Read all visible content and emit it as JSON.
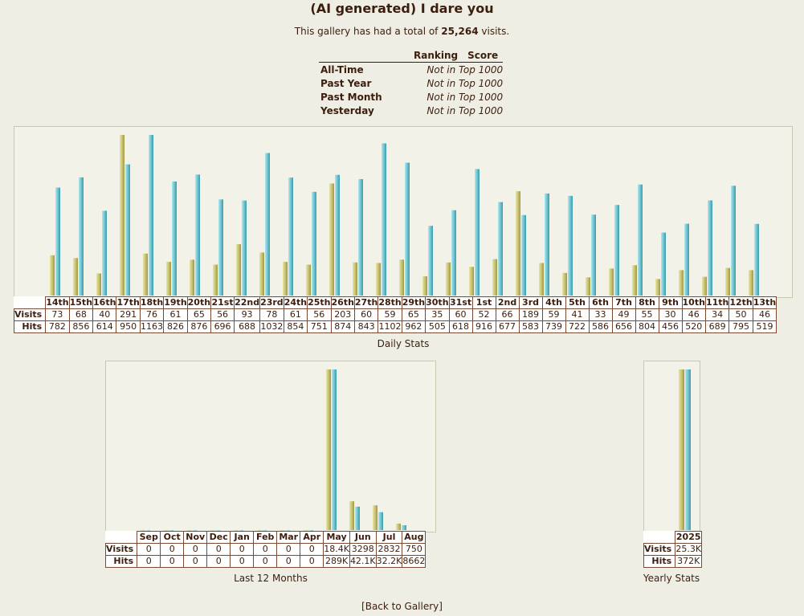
{
  "page": {
    "title": "(AI generated) I dare you",
    "total_prefix": "This gallery has had a total of",
    "total_visits": "25,264",
    "total_suffix": "visits.",
    "back_link": "[Back to Gallery]"
  },
  "ranking": {
    "headers": [
      "Ranking",
      "Score"
    ],
    "rows": [
      {
        "label": "All-Time",
        "value": "Not in Top 1000"
      },
      {
        "label": "Past Year",
        "value": "Not in Top 1000"
      },
      {
        "label": "Past Month",
        "value": "Not in Top 1000"
      },
      {
        "label": "Yesterday",
        "value": "Not in Top 1000"
      }
    ]
  },
  "colors": {
    "visits": "#c9c470",
    "hits": "#6fc6d2"
  },
  "chart_data": [
    {
      "type": "bar",
      "title": "Daily Stats",
      "categories": [
        "14th",
        "15th",
        "16th",
        "17th",
        "18th",
        "19th",
        "20th",
        "21st",
        "22nd",
        "23rd",
        "24th",
        "25th",
        "26th",
        "27th",
        "28th",
        "29th",
        "30th",
        "31st",
        "1st",
        "2nd",
        "3rd",
        "4th",
        "5th",
        "6th",
        "7th",
        "8th",
        "9th",
        "10th",
        "11th",
        "12th",
        "13th"
      ],
      "series": [
        {
          "name": "Visits",
          "values": [
            73,
            68,
            40,
            291,
            76,
            61,
            65,
            56,
            93,
            78,
            61,
            56,
            203,
            60,
            59,
            65,
            35,
            60,
            52,
            66,
            189,
            59,
            41,
            33,
            49,
            55,
            30,
            46,
            34,
            50,
            46
          ],
          "labels": [
            "73",
            "68",
            "40",
            "291",
            "76",
            "61",
            "65",
            "56",
            "93",
            "78",
            "61",
            "56",
            "203",
            "60",
            "59",
            "65",
            "35",
            "60",
            "52",
            "66",
            "189",
            "59",
            "41",
            "33",
            "49",
            "55",
            "30",
            "46",
            "34",
            "50",
            "46"
          ]
        },
        {
          "name": "Hits",
          "values": [
            782,
            856,
            614,
            950,
            1163,
            826,
            876,
            696,
            688,
            1032,
            854,
            751,
            874,
            843,
            1102,
            962,
            505,
            618,
            916,
            677,
            583,
            739,
            722,
            586,
            656,
            804,
            456,
            520,
            689,
            795,
            519
          ],
          "labels": [
            "782",
            "856",
            "614",
            "950",
            "1163",
            "826",
            "876",
            "696",
            "688",
            "1032",
            "854",
            "751",
            "874",
            "843",
            "1102",
            "962",
            "505",
            "618",
            "916",
            "677",
            "583",
            "739",
            "722",
            "586",
            "656",
            "804",
            "456",
            "520",
            "689",
            "795",
            "519"
          ]
        }
      ]
    },
    {
      "type": "bar",
      "title": "Last 12 Months",
      "categories": [
        "Sep",
        "Oct",
        "Nov",
        "Dec",
        "Jan",
        "Feb",
        "Mar",
        "Apr",
        "May",
        "Jun",
        "Jul",
        "Aug"
      ],
      "series": [
        {
          "name": "Visits",
          "values": [
            0,
            0,
            0,
            0,
            0,
            0,
            0,
            0,
            18400,
            3298,
            2832,
            750
          ],
          "labels": [
            "0",
            "0",
            "0",
            "0",
            "0",
            "0",
            "0",
            "0",
            "18.4K",
            "3298",
            "2832",
            "750"
          ]
        },
        {
          "name": "Hits",
          "values": [
            0,
            0,
            0,
            0,
            0,
            0,
            0,
            0,
            289000,
            42100,
            32200,
            8662
          ],
          "labels": [
            "0",
            "0",
            "0",
            "0",
            "0",
            "0",
            "0",
            "0",
            "289K",
            "42.1K",
            "32.2K",
            "8662"
          ]
        }
      ]
    },
    {
      "type": "bar",
      "title": "Yearly Stats",
      "categories": [
        "2025"
      ],
      "series": [
        {
          "name": "Visits",
          "values": [
            25300
          ],
          "labels": [
            "25.3K"
          ]
        },
        {
          "name": "Hits",
          "values": [
            372000
          ],
          "labels": [
            "372K"
          ]
        }
      ]
    }
  ]
}
